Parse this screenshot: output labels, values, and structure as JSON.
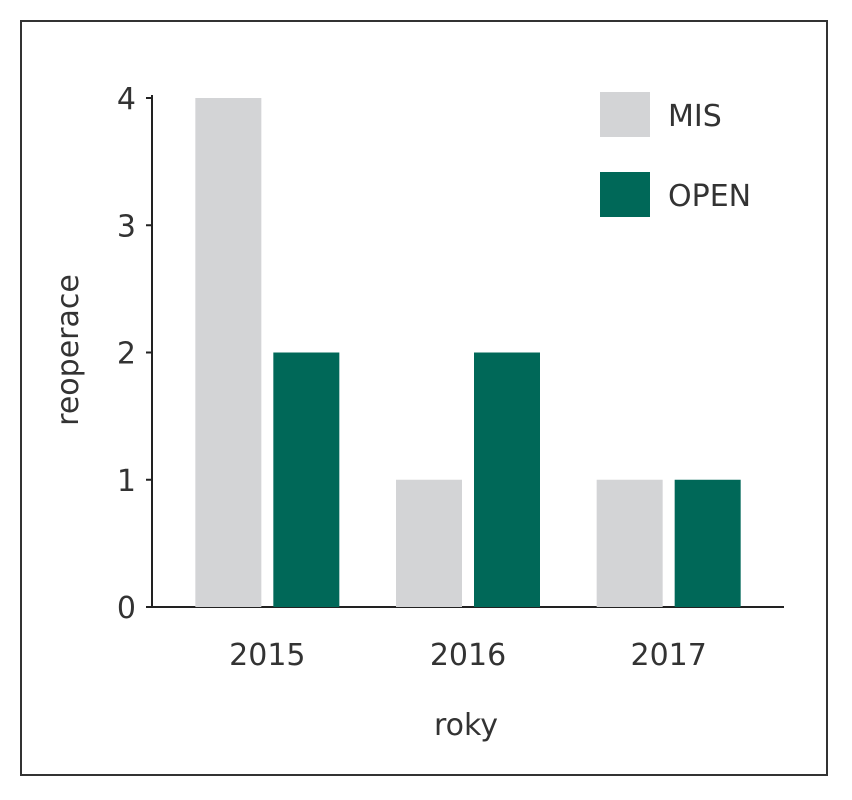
{
  "chart_data": {
    "type": "bar",
    "xlabel": "roky",
    "ylabel": "reoperace",
    "categories": [
      "2015",
      "2016",
      "2017"
    ],
    "series": [
      {
        "name": "MIS",
        "values": [
          4,
          1,
          1
        ],
        "color": "#d3d4d6"
      },
      {
        "name": "OPEN",
        "values": [
          2,
          2,
          1
        ],
        "color": "#006858"
      }
    ],
    "ylim": [
      0,
      4
    ],
    "yticks": [
      0,
      1,
      2,
      3,
      4
    ],
    "grid": false,
    "legend": "top-right"
  }
}
